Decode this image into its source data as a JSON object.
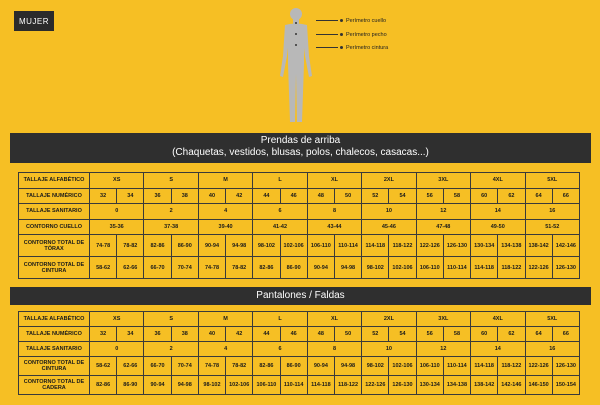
{
  "badge": "MUJER",
  "callouts": [
    "Perímetro cuello",
    "Perímetro pecho",
    "Perímetro cintura"
  ],
  "sections": [
    {
      "title": "Prendas  de arriba",
      "subtitle": "(Chaquetas, vestidos, blusas, polos, chalecos, casacas...)",
      "rows": [
        {
          "label": "TALLAJE ALFABÉTICO",
          "span": 2,
          "values": [
            "XS",
            "S",
            "M",
            "L",
            "XL",
            "2XL",
            "3XL",
            "4XL",
            "5XL"
          ]
        },
        {
          "label": "TALLAJE NUMÉRICO",
          "span": 1,
          "values": [
            "32",
            "34",
            "36",
            "38",
            "40",
            "42",
            "44",
            "46",
            "48",
            "50",
            "52",
            "54",
            "56",
            "58",
            "60",
            "62",
            "64",
            "66"
          ]
        },
        {
          "label": "TALLAJE SANITARIO",
          "span": 2,
          "values": [
            "0",
            "2",
            "4",
            "6",
            "8",
            "10",
            "12",
            "14",
            "16"
          ]
        },
        {
          "label": "CONTORNO CUELLO",
          "span": 2,
          "values": [
            "35-36",
            "37-38",
            "39-40",
            "41-42",
            "43-44",
            "45-46",
            "47-48",
            "49-50",
            "51-52"
          ]
        },
        {
          "label": "CONTORNO TOTAL DE TÓRAX",
          "span": 1,
          "big": true,
          "values": [
            "74-78",
            "78-82",
            "82-86",
            "86-90",
            "90-94",
            "94-98",
            "98-102",
            "102-106",
            "106-110",
            "110-114",
            "114-118",
            "118-122",
            "122-126",
            "126-130",
            "130-134",
            "134-138",
            "138-142",
            "142-146"
          ]
        },
        {
          "label": "CONTORNO TOTAL DE CINTURA",
          "span": 1,
          "big": true,
          "values": [
            "58-62",
            "62-66",
            "66-70",
            "70-74",
            "74-78",
            "78-82",
            "82-86",
            "86-90",
            "90-94",
            "94-98",
            "98-102",
            "102-106",
            "106-110",
            "110-114",
            "114-118",
            "118-122",
            "122-126",
            "126-130"
          ]
        }
      ]
    },
    {
      "title": "Pantalones / Faldas",
      "subtitle": "",
      "rows": [
        {
          "label": "TALLAJE ALFABÉTICO",
          "span": 2,
          "values": [
            "XS",
            "S",
            "M",
            "L",
            "XL",
            "2XL",
            "3XL",
            "4XL",
            "5XL"
          ]
        },
        {
          "label": "TALLAJE NUMÉRICO",
          "span": 1,
          "values": [
            "32",
            "34",
            "36",
            "38",
            "40",
            "42",
            "44",
            "46",
            "48",
            "50",
            "52",
            "54",
            "56",
            "58",
            "60",
            "62",
            "64",
            "66"
          ]
        },
        {
          "label": "TALLAJE SANITARIO",
          "span": 2,
          "values": [
            "0",
            "2",
            "4",
            "6",
            "8",
            "10",
            "12",
            "14",
            "16"
          ]
        },
        {
          "label": "CONTORNO TOTAL DE CINTURA",
          "span": 1,
          "big": true,
          "values": [
            "58-62",
            "62-66",
            "66-70",
            "70-74",
            "74-78",
            "78-82",
            "82-86",
            "86-90",
            "90-94",
            "94-98",
            "98-102",
            "102-106",
            "106-110",
            "110-114",
            "114-118",
            "118-122",
            "122-126",
            "126-130"
          ]
        },
        {
          "label": "CONTORNO TOTAL DE CADERA",
          "span": 1,
          "big": true,
          "values": [
            "82-86",
            "86-90",
            "90-94",
            "94-98",
            "98-102",
            "102-106",
            "106-110",
            "110-114",
            "114-118",
            "118-122",
            "122-126",
            "126-130",
            "130-134",
            "134-138",
            "138-142",
            "142-146",
            "146-150",
            "150-154"
          ]
        }
      ]
    }
  ]
}
